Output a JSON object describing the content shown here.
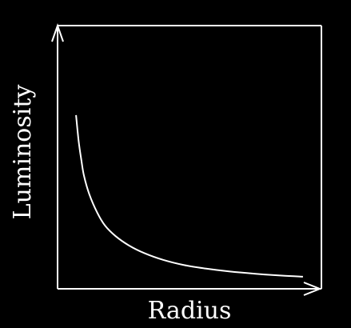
{
  "chart_data": {
    "type": "line",
    "title": "",
    "xlabel": "Radius",
    "ylabel": "Luminosity",
    "grid": false,
    "legend": "none",
    "x_ticks_shown": false,
    "y_ticks_shown": false,
    "xlim": [
      0,
      1
    ],
    "ylim": [
      0,
      1
    ],
    "series": [
      {
        "curve": "inverse",
        "x": [
          0.07,
          0.08,
          0.09,
          0.1,
          0.12,
          0.15,
          0.18,
          0.22,
          0.27,
          0.33,
          0.4,
          0.48,
          0.56,
          0.65,
          0.75,
          0.85,
          0.93
        ],
        "y": [
          0.66,
          0.56,
          0.49,
          0.43,
          0.36,
          0.29,
          0.24,
          0.2,
          0.165,
          0.135,
          0.11,
          0.09,
          0.077,
          0.066,
          0.057,
          0.05,
          0.046
        ]
      }
    ]
  },
  "colors": {
    "background": "#000000",
    "foreground": "#ffffff"
  }
}
